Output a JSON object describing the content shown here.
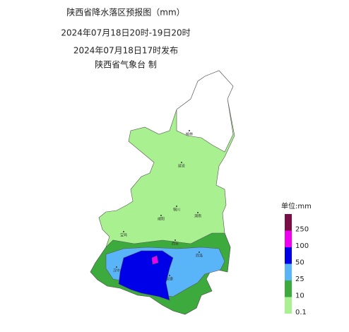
{
  "header": {
    "title": "陕西省降水落区预报图（mm）",
    "period": "2024年07月18日20时-19日20时",
    "issued": "2024年07月18日17时发布",
    "issuer": "陕西省气象台 制"
  },
  "legend": {
    "unit": "单位:mm",
    "items": [
      {
        "label": 250,
        "color": "#7b0d46"
      },
      {
        "label": 100,
        "color": "#f000f0"
      },
      {
        "label": 50,
        "color": "#0000e8"
      },
      {
        "label": 25,
        "color": "#5ab4f8"
      },
      {
        "label": 10,
        "color": "#3caa3c"
      },
      {
        "label": 0.1,
        "color": "#a8f090"
      }
    ]
  },
  "cities": [
    "榆林",
    "延安",
    "铜川",
    "渭南",
    "咸阳",
    "宝鸡",
    "西安",
    "商洛",
    "汉中",
    "安康"
  ]
}
